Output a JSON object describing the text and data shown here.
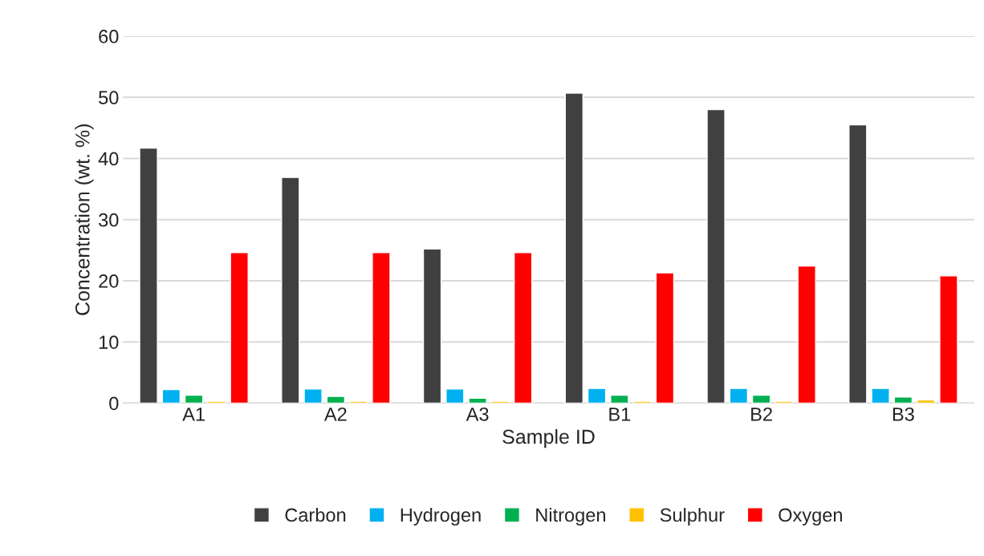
{
  "chart_data": {
    "type": "bar",
    "xlabel": "Sample ID",
    "ylabel": "Concentration (wt. %)",
    "categories": [
      "A1",
      "A2",
      "A3",
      "B1",
      "B2",
      "B3"
    ],
    "series": [
      {
        "name": "Carbon",
        "color": "#404040",
        "values": [
          41.7,
          36.9,
          25.2,
          50.7,
          48.0,
          45.5
        ]
      },
      {
        "name": "Hydrogen",
        "color": "#00b0f0",
        "values": [
          2.2,
          2.3,
          2.3,
          2.4,
          2.4,
          2.4
        ]
      },
      {
        "name": "Nitrogen",
        "color": "#00b050",
        "values": [
          1.3,
          1.1,
          0.8,
          1.3,
          1.3,
          1.0
        ]
      },
      {
        "name": "Sulphur",
        "color": "#ffc000",
        "values": [
          0.3,
          0.3,
          0.3,
          0.3,
          0.3,
          0.5
        ]
      },
      {
        "name": "Oxygen",
        "color": "#ff0000",
        "values": [
          24.6,
          24.6,
          24.6,
          21.3,
          22.4,
          20.8
        ]
      }
    ],
    "ylim": [
      0,
      60
    ],
    "yticks": [
      0,
      10,
      20,
      30,
      40,
      50,
      60
    ],
    "grid": "y",
    "legend": "bottom"
  }
}
